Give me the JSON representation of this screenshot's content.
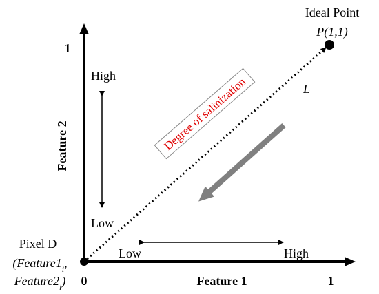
{
  "axes": {
    "x_label": "Feature 1",
    "y_label": "Feature 2",
    "origin": "0",
    "x_max": "1",
    "y_max": "1"
  },
  "ideal_point": {
    "label": "Ideal Point",
    "coords": "P(1,1)"
  },
  "line_label": "L",
  "annotation": "Degree of salinization",
  "pixel": {
    "label": "Pixel D",
    "coord1": "(Feature1",
    "sub1": "i",
    "sep": ",",
    "coord2": "Feature2",
    "sub2": "i",
    "close": ")"
  },
  "y_range": {
    "high": "High",
    "low": "Low"
  },
  "x_range": {
    "low": "Low",
    "high": "High"
  }
}
